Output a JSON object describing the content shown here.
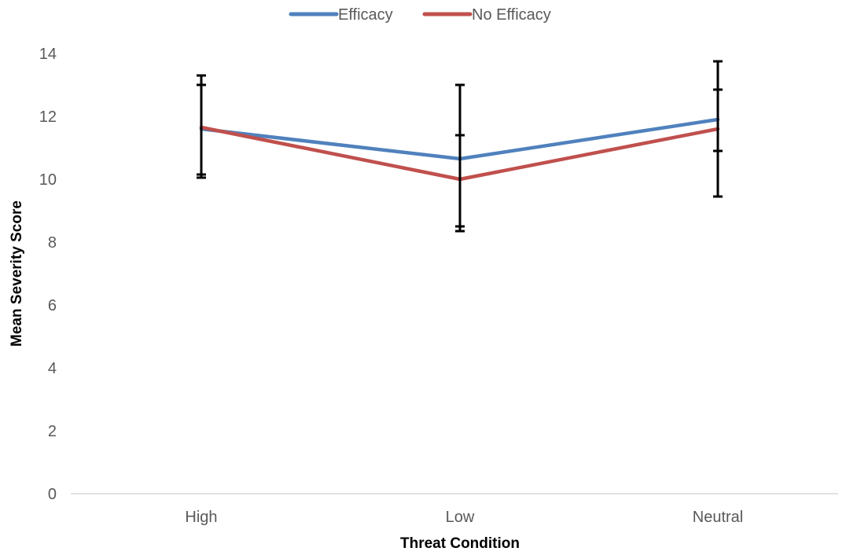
{
  "chart_data": {
    "type": "line",
    "categories": [
      "High",
      "Low",
      "Neutral"
    ],
    "series": [
      {
        "name": "Efficacy",
        "color": "#4f81bd",
        "values": [
          11.6,
          10.65,
          11.9
        ],
        "error_low": [
          10.15,
          8.5,
          10.9
        ],
        "error_high": [
          13.0,
          11.4,
          12.85
        ]
      },
      {
        "name": "No Efficacy",
        "color": "#c0504d",
        "values": [
          11.65,
          10.0,
          11.6
        ],
        "error_low": [
          10.05,
          8.35,
          9.45
        ],
        "error_high": [
          13.3,
          13.0,
          13.75
        ]
      }
    ],
    "error_bar_color": "#000000",
    "xlabel": "Threat Condition",
    "ylabel": "Mean Severity Score",
    "ylim": [
      0,
      14
    ],
    "yticks": [
      0,
      2,
      4,
      6,
      8,
      10,
      12,
      14
    ],
    "grid": false,
    "legend_position": "top-center"
  }
}
